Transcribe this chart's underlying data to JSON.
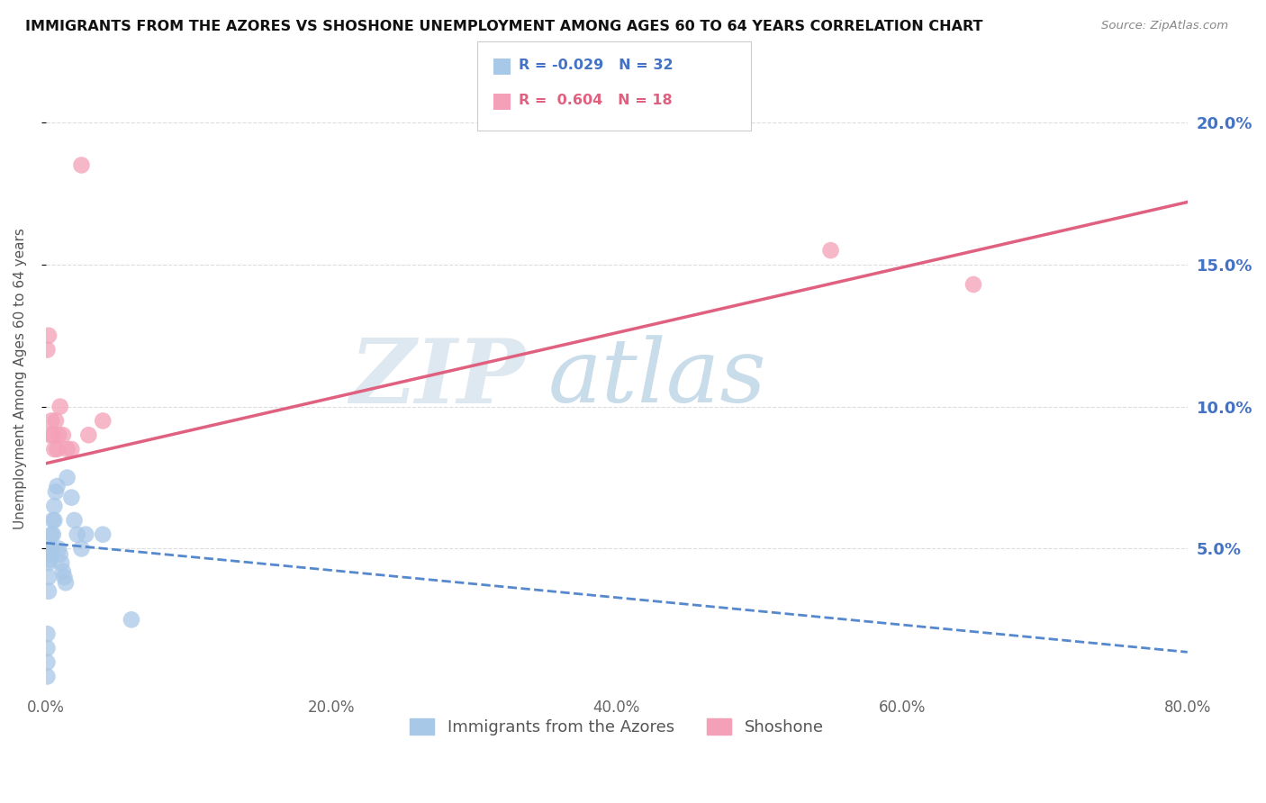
{
  "title": "IMMIGRANTS FROM THE AZORES VS SHOSHONE UNEMPLOYMENT AMONG AGES 60 TO 64 YEARS CORRELATION CHART",
  "source": "Source: ZipAtlas.com",
  "ylabel": "Unemployment Among Ages 60 to 64 years",
  "legend_labels": [
    "Immigrants from the Azores",
    "Shoshone"
  ],
  "azores_R": -0.029,
  "azores_N": 32,
  "shoshone_R": 0.604,
  "shoshone_N": 18,
  "azores_color": "#a8c8e8",
  "shoshone_color": "#f4a0b8",
  "azores_line_color": "#5588cc",
  "shoshone_line_color": "#e06080",
  "xlim": [
    0,
    0.8
  ],
  "ylim": [
    0,
    0.22
  ],
  "x_ticks": [
    0.0,
    0.2,
    0.4,
    0.6,
    0.8
  ],
  "x_tick_labels": [
    "0.0%",
    "20.0%",
    "40.0%",
    "60.0%",
    "80.0%"
  ],
  "y_ticks": [
    0.05,
    0.1,
    0.15,
    0.2
  ],
  "y_tick_labels": [
    "5.0%",
    "10.0%",
    "15.0%",
    "20.0%"
  ],
  "watermark_zip": "ZIP",
  "watermark_atlas": "atlas",
  "background_color": "#ffffff",
  "grid_color": "#dddddd",
  "azores_line_intercept": 0.052,
  "azores_line_slope": -0.048,
  "shoshone_line_intercept": 0.08,
  "shoshone_line_slope": 0.115,
  "azores_points_x": [
    0.001,
    0.001,
    0.001,
    0.001,
    0.002,
    0.002,
    0.002,
    0.003,
    0.003,
    0.003,
    0.004,
    0.004,
    0.005,
    0.005,
    0.006,
    0.006,
    0.007,
    0.008,
    0.009,
    0.01,
    0.011,
    0.012,
    0.013,
    0.014,
    0.015,
    0.018,
    0.02,
    0.022,
    0.025,
    0.028,
    0.04,
    0.06
  ],
  "azores_points_y": [
    0.02,
    0.015,
    0.01,
    0.005,
    0.045,
    0.04,
    0.035,
    0.05,
    0.048,
    0.046,
    0.055,
    0.05,
    0.06,
    0.055,
    0.065,
    0.06,
    0.07,
    0.072,
    0.05,
    0.048,
    0.045,
    0.042,
    0.04,
    0.038,
    0.075,
    0.068,
    0.06,
    0.055,
    0.05,
    0.055,
    0.055,
    0.025
  ],
  "shoshone_points_x": [
    0.001,
    0.002,
    0.003,
    0.004,
    0.005,
    0.006,
    0.007,
    0.008,
    0.009,
    0.01,
    0.012,
    0.015,
    0.018,
    0.025,
    0.03,
    0.04,
    0.55,
    0.65
  ],
  "shoshone_points_y": [
    0.12,
    0.125,
    0.09,
    0.095,
    0.09,
    0.085,
    0.095,
    0.085,
    0.09,
    0.1,
    0.09,
    0.085,
    0.085,
    0.185,
    0.09,
    0.095,
    0.155,
    0.143
  ]
}
